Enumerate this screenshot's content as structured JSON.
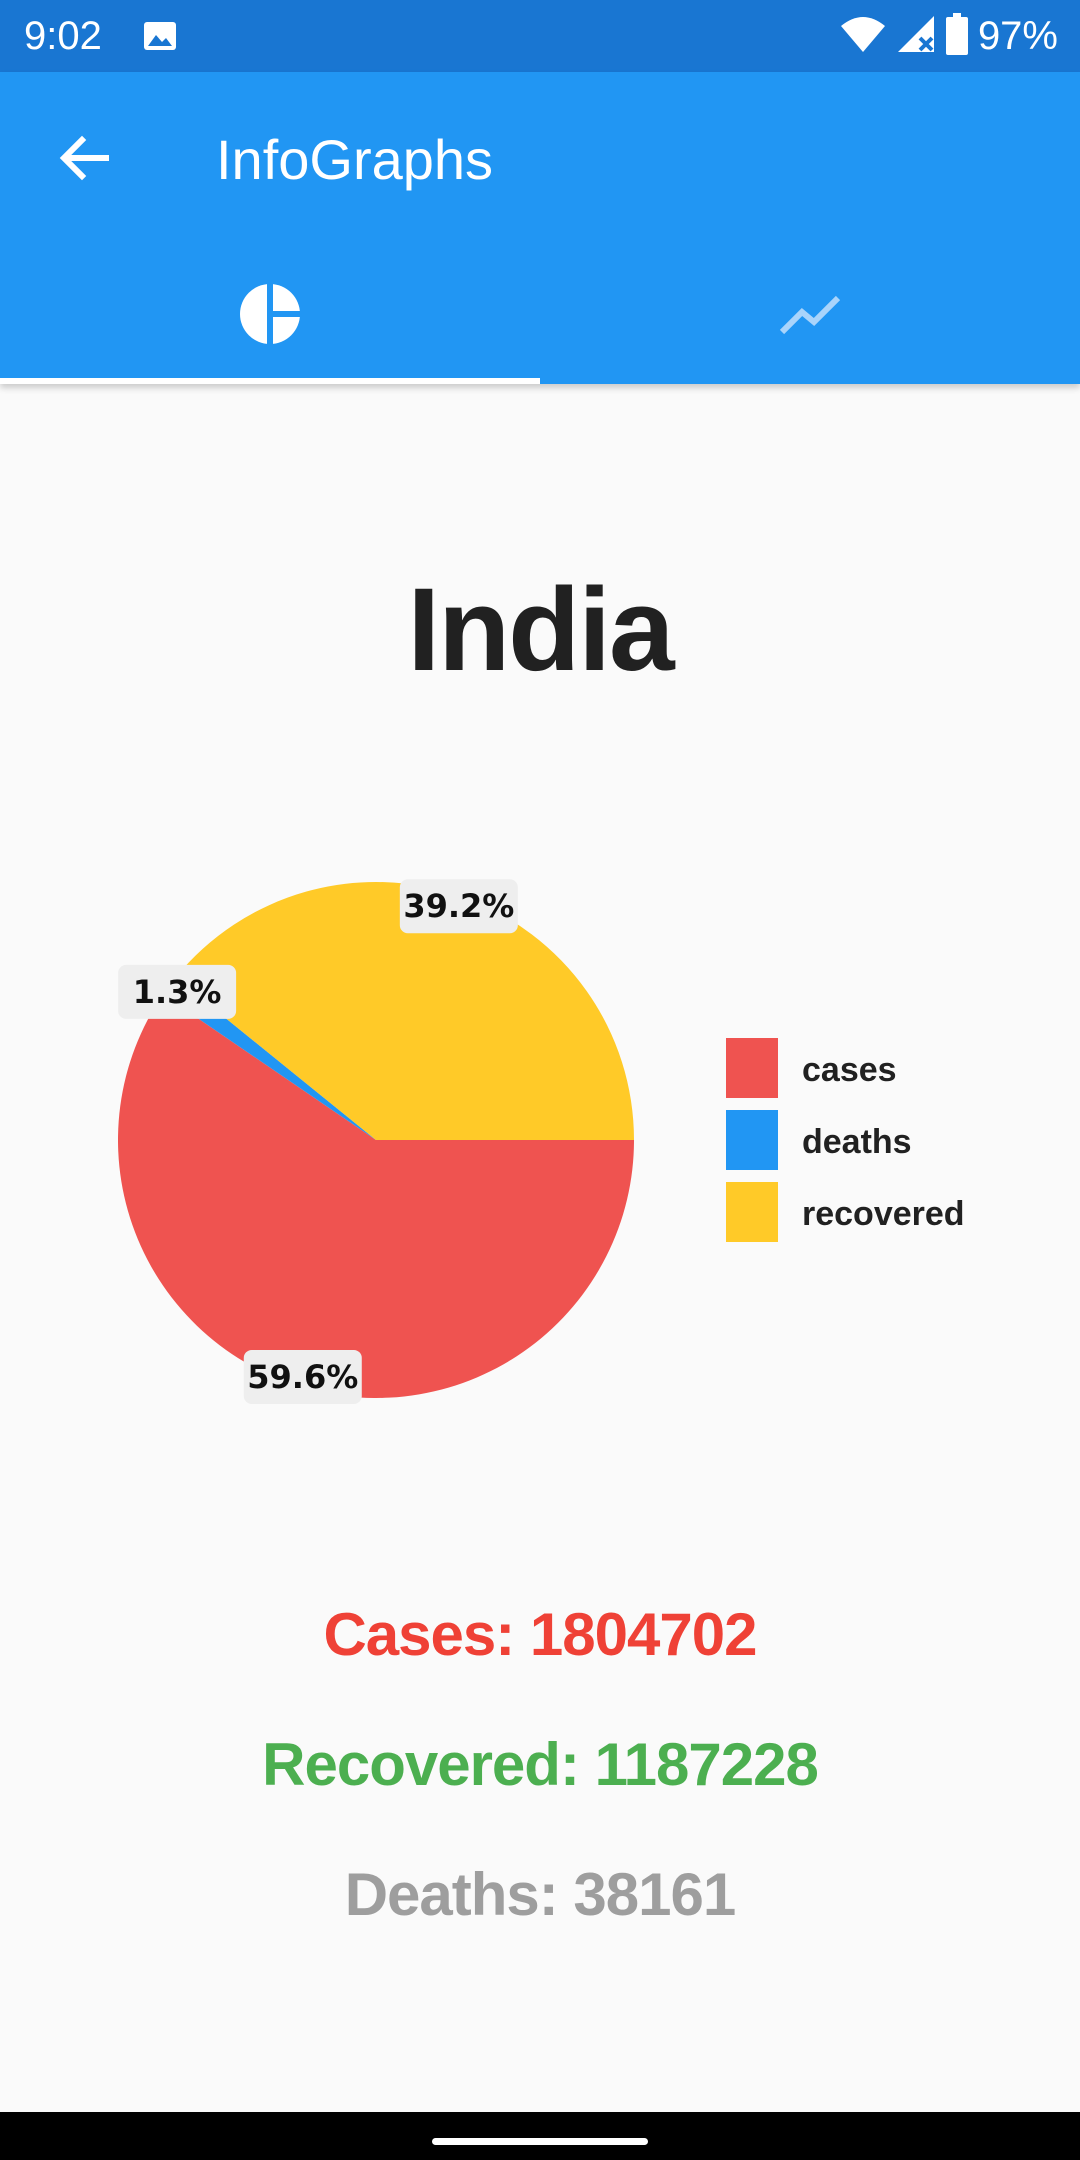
{
  "status_bar": {
    "time": "9:02",
    "battery_text": "97%",
    "icons": [
      "image-icon",
      "wifi-icon",
      "cell-signal-icon",
      "battery-icon"
    ]
  },
  "app_bar": {
    "title": "InfoGraphs",
    "back_icon": "arrow-back-icon",
    "tabs": [
      {
        "icon": "pie-chart-icon",
        "selected": true
      },
      {
        "icon": "line-chart-icon",
        "selected": false
      }
    ]
  },
  "country": "India",
  "colors": {
    "cases": "#ef5350",
    "deaths": "#2196f3",
    "recovered": "#ffca28",
    "cases_text": "#ef4136",
    "recovered_text": "#4caf50",
    "deaths_text": "#9e9e9e",
    "appbar": "#2196f3",
    "statusbar": "#1976d2"
  },
  "chart_data": {
    "type": "pie",
    "categories": [
      "cases",
      "deaths",
      "recovered"
    ],
    "values": [
      59.6,
      1.3,
      39.2
    ],
    "data_labels": [
      "59.6%",
      "1.3%",
      "39.2%"
    ],
    "legend": [
      "cases",
      "deaths",
      "recovered"
    ],
    "legend_position": "right"
  },
  "stats": {
    "cases": "Cases: 1804702",
    "recovered": "Recovered: 1187228",
    "deaths": "Deaths: 38161"
  }
}
